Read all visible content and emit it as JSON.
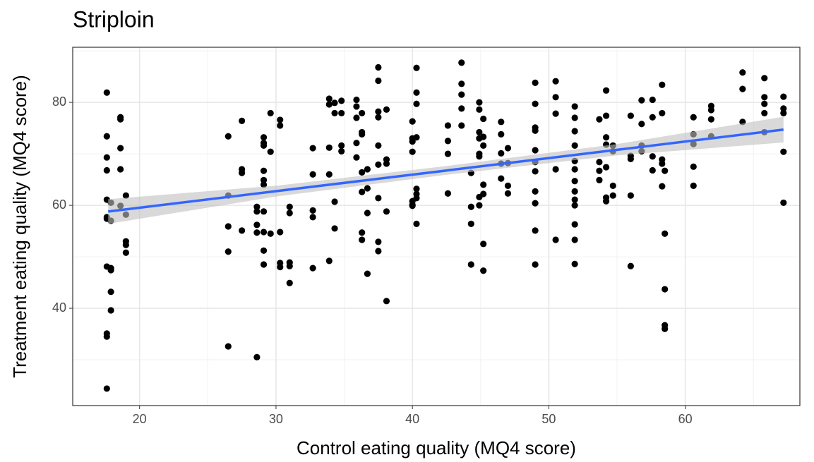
{
  "chart_data": {
    "type": "scatter",
    "title": "Striploin",
    "x_label": "Control eating quality (MQ4 score)",
    "y_label": "Treatment eating quality (MQ4 score)",
    "xlim": [
      15.1,
      68.4
    ],
    "ylim": [
      21.1,
      90.7
    ],
    "xticks": [
      20,
      30,
      40,
      50,
      60
    ],
    "yticks": [
      40,
      60,
      80
    ],
    "minor_xticks": [
      25,
      35,
      45,
      55,
      65
    ],
    "minor_yticks": [
      30,
      50,
      70,
      90
    ],
    "grid": true,
    "color": "#000000",
    "fit": {
      "color": "#3366ff",
      "band_color": "#bfbfbf",
      "x": [
        17.7,
        30,
        42.4,
        55,
        67.2
      ],
      "y": [
        58.8,
        62.75,
        66.73,
        70.78,
        74.7
      ],
      "lower": [
        56.4,
        61.7,
        65.9,
        69.7,
        72.2
      ],
      "upper": [
        61.2,
        63.8,
        67.6,
        71.9,
        77.2
      ]
    },
    "x": [
      17.6,
      17.6,
      17.6,
      17.6,
      17.6,
      17.6,
      17.6,
      17.6,
      17.6,
      17.6,
      17.6,
      17.9,
      17.9,
      17.9,
      17.9,
      17.9,
      17.9,
      18.6,
      18.6,
      18.6,
      18.6,
      18.6,
      19,
      19,
      19,
      19,
      19,
      26.5,
      26.5,
      26.5,
      26.5,
      26.5,
      27.5,
      27.5,
      27.5,
      27.5,
      28.6,
      28.6,
      28.6,
      28.6,
      28.6,
      29.1,
      29.1,
      29.1,
      29.1,
      29.1,
      29.1,
      29.1,
      29.1,
      29.1,
      29.1,
      29.6,
      29.6,
      29.6,
      30.3,
      30.3,
      30.3,
      30.3,
      30.3,
      31,
      31,
      31,
      31,
      31,
      32.7,
      32.7,
      32.7,
      32.7,
      32.7,
      33.9,
      33.9,
      33.9,
      33.9,
      33.9,
      34.3,
      34.3,
      34.3,
      34.3,
      34.8,
      34.8,
      34.8,
      34.8,
      35.9,
      35.9,
      35.9,
      35.9,
      35.9,
      36.3,
      36.3,
      36.3,
      36.3,
      36.3,
      36.3,
      36.3,
      36.7,
      36.7,
      36.7,
      36.7,
      37.5,
      37.5,
      37.5,
      37.5,
      37.5,
      37.5,
      37.5,
      37.5,
      37.5,
      38.1,
      38.1,
      38.1,
      38.1,
      38.1,
      40,
      40,
      40,
      40,
      40,
      40,
      40,
      40.3,
      40.3,
      40.3,
      40.3,
      40.3,
      40.3,
      40.3,
      40.3,
      42.6,
      42.6,
      42.6,
      42.6,
      43.6,
      43.6,
      43.6,
      43.6,
      43.6,
      44.3,
      44.3,
      44.3,
      44.3,
      44.9,
      44.9,
      44.9,
      44.9,
      44.9,
      44.9,
      44.9,
      44.9,
      45.2,
      45.2,
      45.2,
      45.2,
      45.2,
      45.2,
      45.2,
      46.5,
      46.5,
      46.5,
      46.5,
      46.5,
      47,
      47,
      47,
      47,
      49,
      49,
      49,
      49,
      49,
      49,
      49,
      49,
      49,
      49,
      49,
      50.5,
      50.5,
      50.5,
      50.5,
      50.5,
      51.9,
      51.9,
      51.9,
      51.9,
      51.9,
      51.9,
      51.9,
      51.9,
      51.9,
      51.9,
      51.9,
      51.9,
      51.9,
      53.7,
      53.7,
      53.7,
      53.7,
      54.2,
      54.2,
      54.2,
      54.2,
      54.2,
      54.2,
      54.2,
      54.7,
      54.7,
      54.7,
      54.7,
      56,
      56,
      56,
      56,
      56,
      56.8,
      56.8,
      56.8,
      56.8,
      57.6,
      57.6,
      57.6,
      57.6,
      58.3,
      58.3,
      58.3,
      58.3,
      58.3,
      58.5,
      58.5,
      58.5,
      58.5,
      58.5,
      60.6,
      60.6,
      60.6,
      60.6,
      60.6,
      61.9,
      61.9,
      61.9,
      61.9,
      64.2,
      64.2,
      64.2,
      65.8,
      65.8,
      65.8,
      65.8,
      65.8,
      67.2,
      67.2,
      67.2,
      67.2,
      67.2
    ],
    "values": [
      81.9,
      73.4,
      69.3,
      66.8,
      61.1,
      57.7,
      57.4,
      48.1,
      35.1,
      34.5,
      24.4,
      60.5,
      57,
      47.8,
      47.4,
      43.2,
      39.6,
      77.1,
      76.7,
      71.1,
      67,
      59.9,
      61.9,
      58.2,
      53,
      52.3,
      50.8,
      73.4,
      61.9,
      55.9,
      51,
      32.6,
      76.4,
      67,
      66.3,
      55.1,
      59.7,
      58.8,
      56.2,
      54.7,
      30.5,
      73.2,
      72.1,
      71.6,
      66.7,
      64.9,
      64,
      58.8,
      54.8,
      51.2,
      48.5,
      77.9,
      70.4,
      54.5,
      76.6,
      75.5,
      54.8,
      48.8,
      48,
      59.7,
      58.5,
      48.9,
      48.2,
      44.9,
      71.1,
      66,
      59,
      57.7,
      47.8,
      80.7,
      79.6,
      66,
      71.2,
      49.2,
      79.9,
      77.9,
      60.7,
      55.5,
      80.3,
      77.9,
      71.6,
      70.5,
      80.5,
      79.2,
      77,
      72.1,
      69.3,
      77.9,
      74.2,
      73.8,
      66.4,
      62.6,
      54.7,
      53.3,
      67,
      63.3,
      58.5,
      46.7,
      86.8,
      84.2,
      78.2,
      77.1,
      71.6,
      67.9,
      61.4,
      52.9,
      51.1,
      78.6,
      68.9,
      68.1,
      58.8,
      41.4,
      76.3,
      73,
      72.4,
      70.4,
      60.8,
      60.1,
      59.9,
      86.7,
      81.9,
      79.7,
      73.2,
      63.2,
      62.2,
      61.4,
      56.4,
      75.5,
      72.5,
      70,
      62.3,
      87.7,
      83.6,
      81.5,
      78.8,
      75.5,
      66.3,
      59.7,
      56.4,
      48.5,
      80,
      78.6,
      74.2,
      73,
      70,
      69.5,
      61.6,
      60,
      76.8,
      73.3,
      71.6,
      64,
      62.2,
      52.5,
      47.3,
      76.2,
      73.8,
      70.1,
      68.1,
      65.2,
      71.1,
      68.2,
      63.8,
      62.3,
      83.8,
      79.7,
      75.1,
      74.5,
      70.7,
      68.4,
      66.6,
      62.7,
      60.4,
      55.1,
      48.5,
      84.1,
      81,
      77.8,
      67,
      53.3,
      79.2,
      77,
      74.4,
      71.6,
      68.6,
      67,
      64.7,
      62.7,
      61.1,
      60,
      56.3,
      53.3,
      48.6,
      76.7,
      68.4,
      66.7,
      64.9,
      82.3,
      77.4,
      73.2,
      71.8,
      67.4,
      60.8,
      61.5,
      71.6,
      70.5,
      63.8,
      61.9,
      77.4,
      69.6,
      69,
      61.9,
      48.2,
      80.4,
      75.8,
      71.6,
      70.5,
      80.5,
      77.1,
      69.5,
      66.8,
      83.4,
      77.9,
      68.9,
      68.1,
      63.7,
      66.7,
      54.5,
      43.7,
      36.7,
      36,
      77.1,
      73.8,
      71.9,
      67.5,
      63.8,
      79.3,
      78.5,
      76.7,
      73.4,
      85.8,
      82.6,
      76.2,
      84.7,
      81,
      79.7,
      77.9,
      74.2,
      81.1,
      78.8,
      77.9,
      70.4,
      60.5
    ]
  }
}
